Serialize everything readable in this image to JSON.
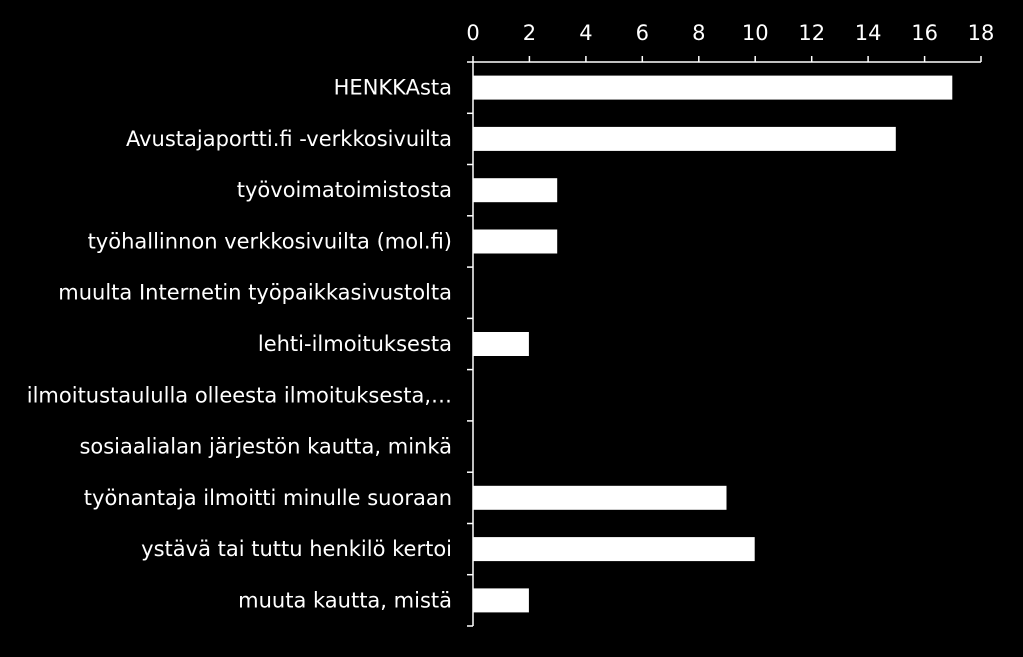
{
  "chart_data": {
    "type": "bar",
    "orientation": "horizontal",
    "x_axis_position": "top",
    "categories": [
      "HENKKAsta",
      "Avustajaportti.fi -verkkosivuilta",
      "työvoimatoimistosta",
      "työhallinnon verkkosivuilta (mol.fi)",
      "muulta Internetin työpaikkasivustolta",
      "lehti-ilmoituksesta",
      "ilmoitustaululla olleesta ilmoituksesta,…",
      "sosiaalialan järjestön kautta, minkä",
      "työnantaja ilmoitti minulle suoraan",
      "ystävä tai tuttu henkilö kertoi",
      "muuta kautta, mistä"
    ],
    "values": [
      17,
      15,
      3,
      3,
      0,
      2,
      0,
      0,
      9,
      10,
      2
    ],
    "xlim": [
      0,
      18
    ],
    "ticks": [
      "0",
      "2",
      "4",
      "6",
      "8",
      "10",
      "12",
      "14",
      "16",
      "18"
    ],
    "title": "",
    "xlabel": "",
    "ylabel": "",
    "grid": false,
    "colors": {
      "background": "#000000",
      "bar_fill": "#ffffff",
      "bar_stroke": "#000000",
      "axis": "#ffffff",
      "text": "#ffffff"
    }
  }
}
